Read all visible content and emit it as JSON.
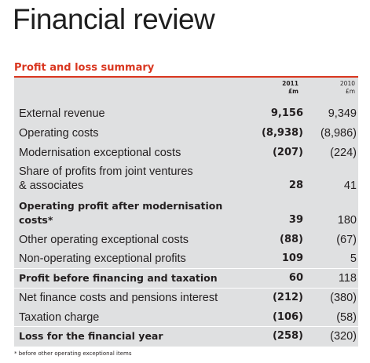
{
  "page": {
    "title": "Financial review"
  },
  "section": {
    "heading": "Profit and loss summary"
  },
  "columns": [
    {
      "year": "2011",
      "unit": "£m"
    },
    {
      "year": "2010",
      "unit": "£m"
    }
  ],
  "rows": [
    {
      "label": "External revenue",
      "v2011": "9,156",
      "v2010": "9,349"
    },
    {
      "label": "Operating costs",
      "v2011": "(8,938)",
      "v2010": "(8,986)"
    },
    {
      "label": "Modernisation exceptional costs",
      "v2011": "(207)",
      "v2010": "(224)"
    },
    {
      "label": [
        "Share of profits from joint ventures",
        "& associates"
      ],
      "v2011": "28",
      "v2010": "41"
    },
    {
      "label": [
        "Operating profit after modernisation",
        "costs*"
      ],
      "v2011": "39",
      "v2010": "180"
    },
    {
      "label": "Other operating exceptional costs",
      "v2011": "(88)",
      "v2010": "(67)"
    },
    {
      "label": "Non-operating exceptional profits",
      "v2011": "109",
      "v2010": "5"
    },
    {
      "label": "Profit before financing and taxation",
      "v2011": "60",
      "v2010": "118"
    },
    {
      "label": "Net finance costs and pensions interest",
      "v2011": "(212)",
      "v2010": "(380)"
    },
    {
      "label": "Taxation charge",
      "v2011": "(106)",
      "v2010": "(58)"
    },
    {
      "label": "Loss for the financial year",
      "v2011": "(258)",
      "v2010": "(320)"
    }
  ],
  "footnote": "* before other operating exceptional items"
}
